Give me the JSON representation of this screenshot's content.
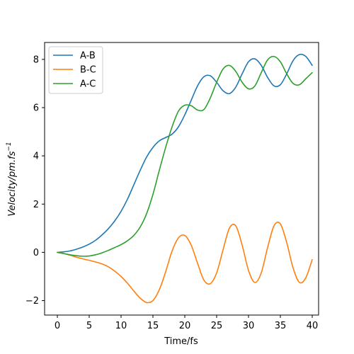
{
  "chart_data": {
    "type": "line",
    "title": "",
    "xlabel": "Time/fs",
    "ylabel": "Velocity/pm.fs",
    "ylabel_superscript": "−1",
    "xlim": [
      -2,
      41
    ],
    "ylim": [
      -2.6,
      8.7
    ],
    "x_ticks": [
      0,
      5,
      10,
      15,
      20,
      25,
      30,
      35,
      40
    ],
    "x_tick_labels": [
      "0",
      "5",
      "10",
      "15",
      "20",
      "25",
      "30",
      "35",
      "40"
    ],
    "y_ticks": [
      -2,
      0,
      2,
      4,
      6,
      8
    ],
    "y_tick_labels": [
      "−2",
      "0",
      "2",
      "4",
      "6",
      "8"
    ],
    "grid": false,
    "legend_position": "top-left",
    "series": [
      {
        "name": "A-B",
        "color": "#1f77b4",
        "points": [
          [
            0,
            0
          ],
          [
            1,
            0.02
          ],
          [
            2,
            0.06
          ],
          [
            3,
            0.13
          ],
          [
            4,
            0.22
          ],
          [
            5,
            0.34
          ],
          [
            6,
            0.5
          ],
          [
            7,
            0.72
          ],
          [
            8,
            0.98
          ],
          [
            9,
            1.3
          ],
          [
            10,
            1.7
          ],
          [
            11,
            2.2
          ],
          [
            12,
            2.8
          ],
          [
            13,
            3.4
          ],
          [
            14,
            3.95
          ],
          [
            15,
            4.35
          ],
          [
            16,
            4.62
          ],
          [
            17,
            4.76
          ],
          [
            18,
            4.9
          ],
          [
            19,
            5.2
          ],
          [
            20,
            5.7
          ],
          [
            21,
            6.3
          ],
          [
            22,
            6.9
          ],
          [
            23,
            7.28
          ],
          [
            24,
            7.32
          ],
          [
            25,
            7.05
          ],
          [
            26,
            6.7
          ],
          [
            27,
            6.58
          ],
          [
            28,
            6.85
          ],
          [
            29,
            7.4
          ],
          [
            30,
            7.9
          ],
          [
            31,
            8.02
          ],
          [
            32,
            7.75
          ],
          [
            33,
            7.25
          ],
          [
            34,
            6.9
          ],
          [
            35,
            6.95
          ],
          [
            36,
            7.4
          ],
          [
            37,
            7.95
          ],
          [
            38,
            8.2
          ],
          [
            39,
            8.12
          ],
          [
            40,
            7.75
          ]
        ]
      },
      {
        "name": "B-C",
        "color": "#ff7f0e",
        "points": [
          [
            0,
            0
          ],
          [
            1,
            -0.05
          ],
          [
            2,
            -0.12
          ],
          [
            3,
            -0.2
          ],
          [
            4,
            -0.27
          ],
          [
            5,
            -0.33
          ],
          [
            6,
            -0.4
          ],
          [
            7,
            -0.48
          ],
          [
            8,
            -0.6
          ],
          [
            9,
            -0.78
          ],
          [
            10,
            -1.0
          ],
          [
            11,
            -1.28
          ],
          [
            12,
            -1.6
          ],
          [
            13,
            -1.9
          ],
          [
            14,
            -2.08
          ],
          [
            15,
            -2.0
          ],
          [
            16,
            -1.55
          ],
          [
            17,
            -0.8
          ],
          [
            18,
            0.05
          ],
          [
            19,
            0.6
          ],
          [
            20,
            0.7
          ],
          [
            21,
            0.3
          ],
          [
            22,
            -0.45
          ],
          [
            23,
            -1.15
          ],
          [
            24,
            -1.3
          ],
          [
            25,
            -0.85
          ],
          [
            26,
            0.1
          ],
          [
            27,
            1.0
          ],
          [
            28,
            1.1
          ],
          [
            29,
            0.3
          ],
          [
            30,
            -0.75
          ],
          [
            31,
            -1.25
          ],
          [
            32,
            -0.85
          ],
          [
            33,
            0.2
          ],
          [
            34,
            1.1
          ],
          [
            35,
            1.18
          ],
          [
            36,
            0.4
          ],
          [
            37,
            -0.65
          ],
          [
            38,
            -1.25
          ],
          [
            39,
            -1.05
          ],
          [
            40,
            -0.3
          ]
        ]
      },
      {
        "name": "A-C",
        "color": "#2ca02c",
        "points": [
          [
            0,
            0
          ],
          [
            1,
            -0.05
          ],
          [
            2,
            -0.1
          ],
          [
            3,
            -0.14
          ],
          [
            4,
            -0.16
          ],
          [
            5,
            -0.15
          ],
          [
            6,
            -0.1
          ],
          [
            7,
            -0.02
          ],
          [
            8,
            0.08
          ],
          [
            9,
            0.2
          ],
          [
            10,
            0.32
          ],
          [
            11,
            0.48
          ],
          [
            12,
            0.7
          ],
          [
            13,
            1.05
          ],
          [
            14,
            1.6
          ],
          [
            15,
            2.4
          ],
          [
            16,
            3.4
          ],
          [
            17,
            4.35
          ],
          [
            18,
            5.2
          ],
          [
            19,
            5.85
          ],
          [
            20,
            6.1
          ],
          [
            21,
            6.08
          ],
          [
            22,
            5.9
          ],
          [
            23,
            5.92
          ],
          [
            24,
            6.4
          ],
          [
            25,
            7.05
          ],
          [
            26,
            7.6
          ],
          [
            27,
            7.75
          ],
          [
            28,
            7.5
          ],
          [
            29,
            7.05
          ],
          [
            30,
            6.78
          ],
          [
            31,
            6.9
          ],
          [
            32,
            7.45
          ],
          [
            33,
            7.98
          ],
          [
            34,
            8.12
          ],
          [
            35,
            7.9
          ],
          [
            36,
            7.4
          ],
          [
            37,
            7.0
          ],
          [
            38,
            6.95
          ],
          [
            39,
            7.2
          ],
          [
            40,
            7.45
          ]
        ]
      }
    ]
  }
}
